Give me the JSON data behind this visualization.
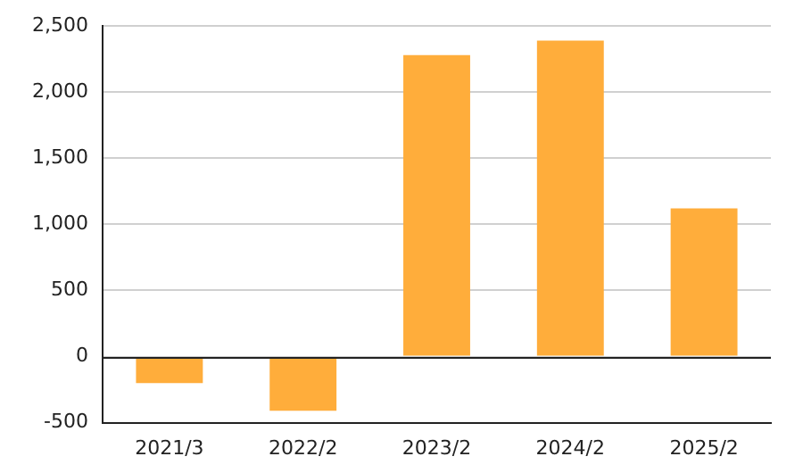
{
  "chart_data": {
    "type": "bar",
    "categories": [
      "2021/3",
      "2022/2",
      "2023/2",
      "2024/2",
      "2025/2"
    ],
    "values": [
      -200,
      -410,
      2280,
      2390,
      1120
    ],
    "color": "#ffad3b",
    "ylim": [
      -500,
      2500
    ],
    "yticks": [
      {
        "value": -500,
        "label": "-500"
      },
      0,
      500,
      {
        "value": 1000,
        "label": "1,000"
      },
      {
        "value": 1500,
        "label": "1,500"
      },
      {
        "value": 2000,
        "label": "2,000"
      },
      {
        "value": 2500,
        "label": "2,500"
      }
    ],
    "grid": "y"
  }
}
